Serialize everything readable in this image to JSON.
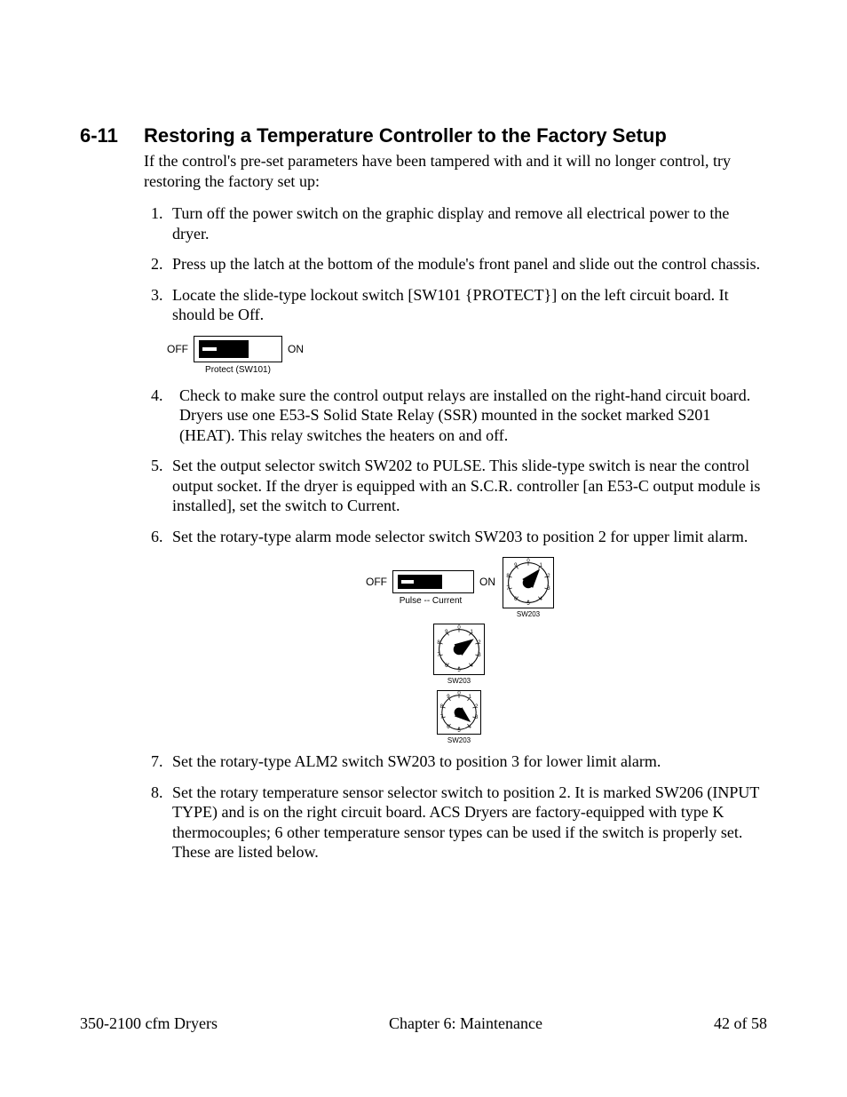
{
  "heading": {
    "number": "6-11",
    "title": "Restoring a Temperature Controller to the Factory Setup"
  },
  "intro": "If the control's pre-set parameters have been tampered with and it will no longer control, try restoring the factory set up:",
  "steps": [
    "Turn off the power switch on the graphic display and remove all electrical power to the dryer.",
    "Press up the latch at the bottom of the module's front panel and slide out the control chassis.",
    "Locate the slide-type lockout switch [SW101 {PROTECT}] on the left circuit board. It should be Off.",
    "Check to make sure the control output relays are installed on the right-hand circuit board. Dryers use one E53-S Solid State Relay (SSR) mounted in the socket marked S201 (HEAT). This relay switches the heaters on and off.",
    "Set the output selector switch SW202 to PULSE. This slide-type switch is near the control output socket. If the dryer is equipped with an S.C.R. controller [an E53-C output module is installed], set the switch to Current.",
    "Set the rotary-type alarm mode selector switch SW203 to position 2 for upper limit alarm.",
    "Set the rotary-type ALM2 switch SW203 to position 3 for lower limit alarm.",
    "Set the rotary temperature sensor selector switch to position 2. It is marked SW206 (INPUT TYPE) and is on the right circuit board. ACS Dryers are factory-equipped with type K thermocouples; 6 other temperature sensor types can be used if the switch is properly set. These are listed below."
  ],
  "diagrams": {
    "switch_labels": {
      "off": "OFF",
      "on": "ON"
    },
    "protect_caption": "Protect (SW101)",
    "pulse_caption": "Pulse  --  Current",
    "rotary_caption": "SW203",
    "rotary_numbers": [
      "0",
      "1",
      "2",
      "3",
      "4",
      "5",
      "6",
      "7",
      "8",
      "9"
    ],
    "colors": {
      "stroke": "#000000",
      "fill_black": "#000000",
      "fill_white": "#ffffff"
    },
    "rotary_dials": [
      {
        "pointer_angle_deg": 40,
        "frame_size": 56
      },
      {
        "pointer_angle_deg": 55,
        "frame_size": 56
      },
      {
        "pointer_angle_deg": 130,
        "frame_size": 48
      }
    ]
  },
  "footer": {
    "left": "350-2100 cfm Dryers",
    "center": "Chapter 6: Maintenance",
    "right": "42 of 58"
  }
}
